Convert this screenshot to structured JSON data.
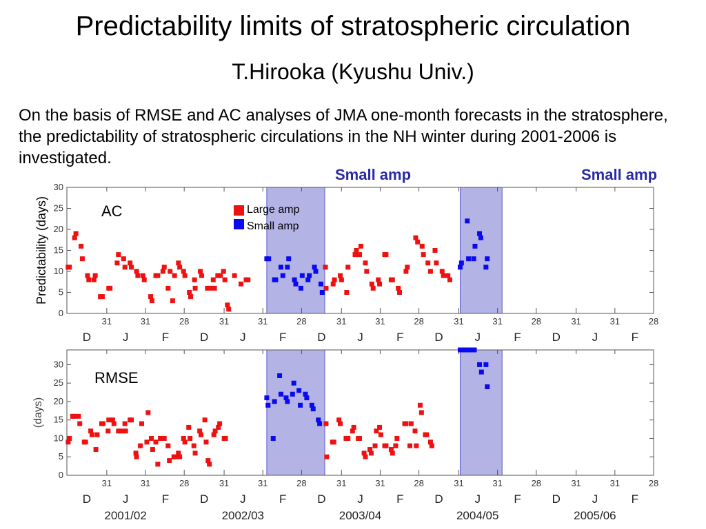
{
  "title": "Predictability limits of stratospheric circulation",
  "subtitle": "T.Hirooka (Kyushu Univ.)",
  "description": "On the basis of RMSE and AC analyses of JMA one-month forecasts in the stratosphere, the predictability of stratospheric circulations in the NH winter during 2001-2006 is investigated.",
  "shade_labels": [
    "Small  amp",
    "Small amp"
  ],
  "colors": {
    "large_amp": "#ee1111",
    "small_amp": "#0a0af0",
    "shade": "#b3b3e6",
    "shade_edge": "#5a5ac8"
  },
  "chart_data": [
    {
      "type": "scatter",
      "panel_label": "AC",
      "ylabel": "Predictability (days)",
      "ylim": [
        0,
        30
      ],
      "yticks": [
        0,
        5,
        10,
        15,
        20,
        25,
        30
      ],
      "xlim": [
        0,
        91
      ],
      "xtick_labels": [
        "31",
        "31",
        "28",
        "31",
        "31",
        "28",
        "31",
        "31",
        "28",
        "31",
        "31",
        "28",
        "31",
        "31",
        "28"
      ],
      "month_labels": [
        "D",
        "J",
        "F",
        "D",
        "J",
        "F",
        "D",
        "J",
        "F",
        "D",
        "J",
        "F",
        "D",
        "J",
        "F"
      ],
      "legend": [
        "Large amp",
        "Small amp"
      ],
      "legend_position": "top-center",
      "shaded_x_ranges": [
        [
          31,
          40
        ],
        [
          61,
          67.5
        ]
      ],
      "series": [
        {
          "name": "Large amp",
          "points": [
            [
              0.2,
              11
            ],
            [
              0.4,
              11
            ],
            [
              1.2,
              18
            ],
            [
              1.4,
              19
            ],
            [
              2.2,
              16
            ],
            [
              2.4,
              13
            ],
            [
              3.2,
              9
            ],
            [
              3.4,
              8
            ],
            [
              4.2,
              8
            ],
            [
              4.4,
              9
            ],
            [
              5.2,
              4
            ],
            [
              5.5,
              4
            ],
            [
              6.5,
              6
            ],
            [
              6.7,
              6
            ],
            [
              7.8,
              12
            ],
            [
              8.0,
              14
            ],
            [
              8.8,
              13
            ],
            [
              9.0,
              11
            ],
            [
              9.8,
              12
            ],
            [
              10,
              11
            ],
            [
              10.8,
              10
            ],
            [
              11,
              9
            ],
            [
              11.8,
              9
            ],
            [
              12,
              8
            ],
            [
              13.0,
              4
            ],
            [
              13.2,
              3
            ],
            [
              13.8,
              9
            ],
            [
              14.1,
              9
            ],
            [
              14.9,
              10
            ],
            [
              15.1,
              11
            ],
            [
              15.7,
              6
            ],
            [
              16.0,
              10
            ],
            [
              16.4,
              3
            ],
            [
              16.7,
              9
            ],
            [
              17.3,
              12
            ],
            [
              17.5,
              11
            ],
            [
              18.1,
              10
            ],
            [
              18.3,
              9
            ],
            [
              19.0,
              5
            ],
            [
              19.2,
              4
            ],
            [
              19.8,
              8
            ],
            [
              19.9,
              6
            ],
            [
              20.7,
              10
            ],
            [
              20.9,
              9
            ],
            [
              21.8,
              6
            ],
            [
              22.2,
              6
            ],
            [
              22.7,
              8
            ],
            [
              22.9,
              6
            ],
            [
              23.4,
              9
            ],
            [
              23.8,
              9
            ],
            [
              24.3,
              10
            ],
            [
              24.5,
              8
            ],
            [
              24.9,
              2
            ],
            [
              25.1,
              1
            ],
            [
              26.0,
              9
            ],
            [
              27.0,
              7
            ],
            [
              27.8,
              8
            ],
            [
              28.1,
              8
            ],
            [
              40.1,
              11
            ],
            [
              40.2,
              6
            ],
            [
              41.3,
              7
            ],
            [
              41.5,
              8
            ],
            [
              42.4,
              9
            ],
            [
              42.6,
              8
            ],
            [
              43.4,
              5
            ],
            [
              43.6,
              11
            ],
            [
              44.7,
              14
            ],
            [
              44.9,
              15
            ],
            [
              45.4,
              14
            ],
            [
              45.6,
              16
            ],
            [
              46.3,
              12
            ],
            [
              46.5,
              10
            ],
            [
              47.3,
              7
            ],
            [
              47.5,
              6
            ],
            [
              48.3,
              8
            ],
            [
              48.5,
              7
            ],
            [
              49.3,
              14
            ],
            [
              49.5,
              14
            ],
            [
              50.3,
              8
            ],
            [
              50.5,
              8
            ],
            [
              51.4,
              6
            ],
            [
              51.6,
              5
            ],
            [
              52.6,
              10
            ],
            [
              52.8,
              11
            ],
            [
              54.1,
              18
            ],
            [
              54.4,
              17
            ],
            [
              55.1,
              16
            ],
            [
              55.3,
              14
            ],
            [
              56.0,
              12
            ],
            [
              56.4,
              10
            ],
            [
              57.1,
              15
            ],
            [
              57.3,
              12
            ],
            [
              58.2,
              10
            ],
            [
              58.4,
              9
            ],
            [
              59.1,
              9
            ],
            [
              59.4,
              8
            ]
          ]
        },
        {
          "name": "Small amp",
          "points": [
            [
              31.0,
              13
            ],
            [
              31.3,
              13
            ],
            [
              32.2,
              8
            ],
            [
              32.4,
              8
            ],
            [
              33.2,
              11
            ],
            [
              33.5,
              9
            ],
            [
              34.2,
              11
            ],
            [
              34.4,
              13
            ],
            [
              35.3,
              8
            ],
            [
              35.5,
              7
            ],
            [
              36.3,
              6
            ],
            [
              36.5,
              9
            ],
            [
              37.4,
              8
            ],
            [
              37.6,
              9
            ],
            [
              38.4,
              11
            ],
            [
              38.6,
              10
            ],
            [
              39.4,
              7
            ],
            [
              39.6,
              5
            ],
            [
              61.0,
              11
            ],
            [
              61.2,
              12
            ],
            [
              62.1,
              22
            ],
            [
              62.3,
              13
            ],
            [
              63.1,
              13
            ],
            [
              63.3,
              16
            ],
            [
              64.0,
              19
            ],
            [
              64.2,
              18
            ],
            [
              65.0,
              11
            ],
            [
              65.2,
              13
            ]
          ]
        }
      ]
    },
    {
      "type": "scatter",
      "panel_label": "RMSE",
      "ylabel": "(days)",
      "ylim": [
        0,
        34
      ],
      "yticks": [
        0,
        5,
        10,
        15,
        20,
        25,
        30
      ],
      "xlim": [
        0,
        91
      ],
      "xtick_labels": [
        "31",
        "31",
        "28",
        "31",
        "31",
        "28",
        "31",
        "31",
        "28",
        "31",
        "31",
        "28",
        "31",
        "31",
        "28"
      ],
      "month_labels": [
        "D",
        "J",
        "F",
        "D",
        "J",
        "F",
        "D",
        "J",
        "F",
        "D",
        "J",
        "F",
        "D",
        "J",
        "F"
      ],
      "season_labels": [
        "2001/02",
        "2002/03",
        "2003/04",
        "2004/05",
        "2005/06"
      ],
      "shaded_x_ranges": [
        [
          31,
          40
        ],
        [
          61,
          67.5
        ]
      ],
      "series": [
        {
          "name": "Large amp",
          "points": [
            [
              0.2,
              9
            ],
            [
              0.4,
              10
            ],
            [
              0.9,
              16
            ],
            [
              1.1,
              16
            ],
            [
              1.8,
              16
            ],
            [
              2.0,
              14
            ],
            [
              2.7,
              9
            ],
            [
              2.9,
              9
            ],
            [
              3.7,
              12
            ],
            [
              3.9,
              11
            ],
            [
              4.5,
              7
            ],
            [
              4.7,
              11
            ],
            [
              5.4,
              14
            ],
            [
              5.6,
              14
            ],
            [
              6.4,
              12
            ],
            [
              6.5,
              15
            ],
            [
              7.1,
              15
            ],
            [
              7.3,
              14
            ],
            [
              8.0,
              12
            ],
            [
              8.4,
              12
            ],
            [
              9.0,
              14
            ],
            [
              9.1,
              12
            ],
            [
              9.8,
              15
            ],
            [
              10.0,
              15
            ],
            [
              10.7,
              6
            ],
            [
              10.8,
              5
            ],
            [
              11.4,
              8
            ],
            [
              11.6,
              14
            ],
            [
              12.4,
              9
            ],
            [
              12.6,
              17
            ],
            [
              13.1,
              10
            ],
            [
              13.3,
              7
            ],
            [
              13.8,
              9
            ],
            [
              14.1,
              3
            ],
            [
              14.5,
              10
            ],
            [
              15.1,
              10
            ],
            [
              15.7,
              8
            ],
            [
              15.9,
              4
            ],
            [
              16.6,
              5
            ],
            [
              16.8,
              5
            ],
            [
              17.3,
              6
            ],
            [
              17.5,
              5
            ],
            [
              18.1,
              10
            ],
            [
              18.3,
              9
            ],
            [
              18.9,
              13
            ],
            [
              19.1,
              10
            ],
            [
              19.7,
              8
            ],
            [
              19.9,
              6
            ],
            [
              20.6,
              12
            ],
            [
              20.8,
              11
            ],
            [
              21.4,
              15
            ],
            [
              21.6,
              9
            ],
            [
              21.9,
              4
            ],
            [
              22.1,
              3
            ],
            [
              22.8,
              11
            ],
            [
              23.0,
              12
            ],
            [
              23.5,
              13
            ],
            [
              23.7,
              14
            ],
            [
              24.4,
              10
            ],
            [
              24.6,
              10
            ],
            [
              40.2,
              14
            ],
            [
              40.3,
              5
            ],
            [
              41.2,
              9
            ],
            [
              41.4,
              9
            ],
            [
              42.2,
              15
            ],
            [
              42.4,
              14
            ],
            [
              43.3,
              10
            ],
            [
              43.6,
              10
            ],
            [
              44.3,
              12
            ],
            [
              44.5,
              13
            ],
            [
              45.2,
              10
            ],
            [
              45.4,
              10
            ],
            [
              46.1,
              6
            ],
            [
              46.3,
              5
            ],
            [
              47.0,
              7
            ],
            [
              47.2,
              6
            ],
            [
              47.8,
              8
            ],
            [
              48.0,
              12
            ],
            [
              48.5,
              13
            ],
            [
              48.7,
              11
            ],
            [
              49.3,
              8
            ],
            [
              49.5,
              8
            ],
            [
              50.3,
              7
            ],
            [
              50.5,
              6
            ],
            [
              51.0,
              8
            ],
            [
              51.2,
              10
            ],
            [
              52.4,
              14
            ],
            [
              52.6,
              14
            ],
            [
              53.2,
              8
            ],
            [
              53.4,
              14
            ],
            [
              54.0,
              12
            ],
            [
              54.2,
              8
            ],
            [
              54.8,
              19
            ],
            [
              55.0,
              17
            ],
            [
              55.6,
              11
            ],
            [
              55.8,
              11
            ],
            [
              56.4,
              9
            ],
            [
              56.6,
              8
            ]
          ]
        },
        {
          "name": "Small amp",
          "points": [
            [
              31.0,
              21
            ],
            [
              31.2,
              19
            ],
            [
              32.0,
              10
            ],
            [
              32.2,
              20
            ],
            [
              33.0,
              27
            ],
            [
              33.2,
              22
            ],
            [
              34.0,
              21
            ],
            [
              34.2,
              20
            ],
            [
              35.0,
              22
            ],
            [
              35.2,
              25
            ],
            [
              36.0,
              23
            ],
            [
              36.2,
              19
            ],
            [
              37.0,
              22
            ],
            [
              37.2,
              21
            ],
            [
              38.0,
              19
            ],
            [
              38.2,
              18
            ],
            [
              39.0,
              15
            ],
            [
              39.2,
              14
            ],
            [
              61.0,
              34
            ],
            [
              61.3,
              34
            ],
            [
              62.0,
              34
            ],
            [
              62.3,
              34
            ],
            [
              63.0,
              34
            ],
            [
              63.2,
              34
            ],
            [
              64.0,
              30
            ],
            [
              64.3,
              28
            ],
            [
              65.0,
              30
            ],
            [
              65.2,
              24
            ]
          ]
        }
      ]
    }
  ]
}
